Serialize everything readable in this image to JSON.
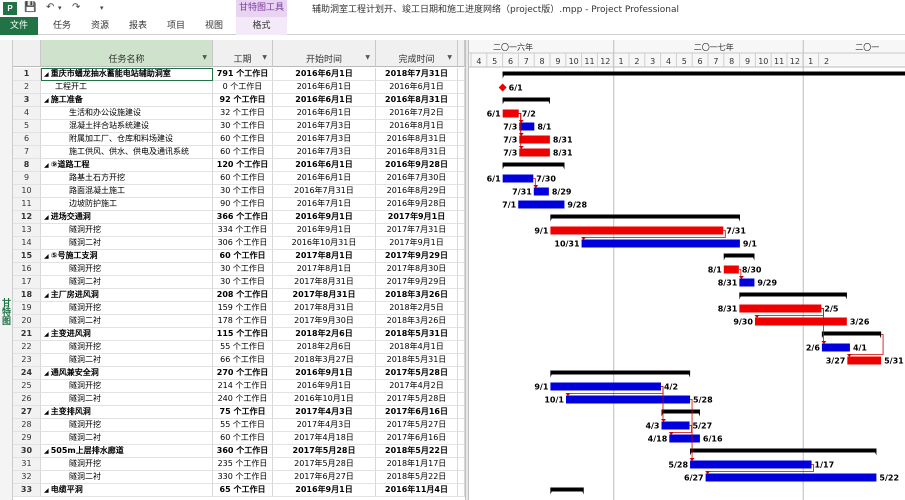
{
  "window": {
    "app_icon": "P",
    "title": "辅助洞室工程计划开、竣工日期和施工进度网络（project版）.mpp - Project Professional",
    "context_tab": "甘特图工具"
  },
  "quick_access": {
    "save_icon": "save-icon",
    "undo_icon": "undo-icon",
    "redo_icon": "redo-icon"
  },
  "ribbon": {
    "tabs": [
      {
        "label": "文件"
      },
      {
        "label": "任务"
      },
      {
        "label": "资源"
      },
      {
        "label": "报表"
      },
      {
        "label": "项目"
      },
      {
        "label": "视图"
      },
      {
        "label": "格式"
      }
    ]
  },
  "view_label": "甘特图",
  "columns": {
    "name": "任务名称",
    "duration": "工期",
    "start": "开始时间",
    "finish": "完成时间"
  },
  "timescale": {
    "years": [
      "二〇一六年",
      "二〇一七年",
      "二〇一"
    ],
    "months": [
      "4",
      "5",
      "6",
      "7",
      "8",
      "9",
      "10",
      "11",
      "12",
      "1",
      "2",
      "3",
      "4",
      "5",
      "6",
      "7",
      "8",
      "9",
      "10",
      "11",
      "12",
      "1",
      "2"
    ]
  },
  "tasks": [
    {
      "id": "1",
      "name": "重庆市蟠龙抽水蓄能电站辅助洞室",
      "dur": "791 个工作日",
      "start": "2016年6月1日",
      "finish": "2018年7月31日",
      "summary": true,
      "indent": 0
    },
    {
      "id": "2",
      "name": "工程开工",
      "dur": "0 个工作日",
      "start": "2016年6月1日",
      "finish": "2016年6月1日",
      "summary": false,
      "indent": 1
    },
    {
      "id": "3",
      "name": "施工准备",
      "dur": "92 个工作日",
      "start": "2016年6月1日",
      "finish": "2016年8月31日",
      "summary": true,
      "indent": 0
    },
    {
      "id": "4",
      "name": "生活和办公设施建设",
      "dur": "32 个工作日",
      "start": "2016年6月1日",
      "finish": "2016年7月2日",
      "summary": false,
      "indent": 2
    },
    {
      "id": "5",
      "name": "混凝土拌合站系统建设",
      "dur": "30 个工作日",
      "start": "2016年7月3日",
      "finish": "2016年8月1日",
      "summary": false,
      "indent": 2
    },
    {
      "id": "6",
      "name": "附属加工厂、仓库和料场建设",
      "dur": "60 个工作日",
      "start": "2016年7月3日",
      "finish": "2016年8月31日",
      "summary": false,
      "indent": 2
    },
    {
      "id": "7",
      "name": "施工供风、供水、供电及通讯系统",
      "dur": "60 个工作日",
      "start": "2016年7月3日",
      "finish": "2016年8月31日",
      "summary": false,
      "indent": 2
    },
    {
      "id": "8",
      "name": "⑨道路工程",
      "dur": "120 个工作日",
      "start": "2016年6月1日",
      "finish": "2016年9月28日",
      "summary": true,
      "indent": 0
    },
    {
      "id": "9",
      "name": "路基土石方开挖",
      "dur": "60 个工作日",
      "start": "2016年6月1日",
      "finish": "2016年7月30日",
      "summary": false,
      "indent": 2
    },
    {
      "id": "10",
      "name": "路面混凝土施工",
      "dur": "30 个工作日",
      "start": "2016年7月31日",
      "finish": "2016年8月29日",
      "summary": false,
      "indent": 2
    },
    {
      "id": "11",
      "name": "边坡防护施工",
      "dur": "90 个工作日",
      "start": "2016年7月1日",
      "finish": "2016年9月28日",
      "summary": false,
      "indent": 2
    },
    {
      "id": "12",
      "name": "进场交通洞",
      "dur": "366 个工作日",
      "start": "2016年9月1日",
      "finish": "2017年9月1日",
      "summary": true,
      "indent": 0
    },
    {
      "id": "13",
      "name": "隧洞开挖",
      "dur": "334 个工作日",
      "start": "2016年9月1日",
      "finish": "2017年7月31日",
      "summary": false,
      "indent": 2
    },
    {
      "id": "14",
      "name": "隧洞二衬",
      "dur": "306 个工作日",
      "start": "2016年10月31日",
      "finish": "2017年9月1日",
      "summary": false,
      "indent": 2
    },
    {
      "id": "15",
      "name": "⑤号施工支洞",
      "dur": "60 个工作日",
      "start": "2017年8月1日",
      "finish": "2017年9月29日",
      "summary": true,
      "indent": 0
    },
    {
      "id": "16",
      "name": "隧洞开挖",
      "dur": "30 个工作日",
      "start": "2017年8月1日",
      "finish": "2017年8月30日",
      "summary": false,
      "indent": 2
    },
    {
      "id": "17",
      "name": "隧洞二衬",
      "dur": "30 个工作日",
      "start": "2017年8月31日",
      "finish": "2017年9月29日",
      "summary": false,
      "indent": 2
    },
    {
      "id": "18",
      "name": "主厂房进风洞",
      "dur": "208 个工作日",
      "start": "2017年8月31日",
      "finish": "2018年3月26日",
      "summary": true,
      "indent": 0
    },
    {
      "id": "19",
      "name": "隧洞开挖",
      "dur": "159 个工作日",
      "start": "2017年8月31日",
      "finish": "2018年2月5日",
      "summary": false,
      "indent": 2
    },
    {
      "id": "20",
      "name": "隧洞二衬",
      "dur": "178 个工作日",
      "start": "2017年9月30日",
      "finish": "2018年3月26日",
      "summary": false,
      "indent": 2
    },
    {
      "id": "21",
      "name": "主变进风洞",
      "dur": "115 个工作日",
      "start": "2018年2月6日",
      "finish": "2018年5月31日",
      "summary": true,
      "indent": 0
    },
    {
      "id": "22",
      "name": "隧洞开挖",
      "dur": "55 个工作日",
      "start": "2018年2月6日",
      "finish": "2018年4月1日",
      "summary": false,
      "indent": 2
    },
    {
      "id": "23",
      "name": "隧洞二衬",
      "dur": "66 个工作日",
      "start": "2018年3月27日",
      "finish": "2018年5月31日",
      "summary": false,
      "indent": 2
    },
    {
      "id": "24",
      "name": "通风兼安全洞",
      "dur": "270 个工作日",
      "start": "2016年9月1日",
      "finish": "2017年5月28日",
      "summary": true,
      "indent": 0
    },
    {
      "id": "25",
      "name": "隧洞开挖",
      "dur": "214 个工作日",
      "start": "2016年9月1日",
      "finish": "2017年4月2日",
      "summary": false,
      "indent": 2
    },
    {
      "id": "26",
      "name": "隧洞二衬",
      "dur": "240 个工作日",
      "start": "2016年10月1日",
      "finish": "2017年5月28日",
      "summary": false,
      "indent": 2
    },
    {
      "id": "27",
      "name": "主变排风洞",
      "dur": "75 个工作日",
      "start": "2017年4月3日",
      "finish": "2017年6月16日",
      "summary": true,
      "indent": 0
    },
    {
      "id": "28",
      "name": "隧洞开挖",
      "dur": "55 个工作日",
      "start": "2017年4月3日",
      "finish": "2017年5月27日",
      "summary": false,
      "indent": 2
    },
    {
      "id": "29",
      "name": "隧洞二衬",
      "dur": "60 个工作日",
      "start": "2017年4月18日",
      "finish": "2017年6月16日",
      "summary": false,
      "indent": 2
    },
    {
      "id": "30",
      "name": "505m上层排水廊道",
      "dur": "360 个工作日",
      "start": "2017年5月28日",
      "finish": "2018年5月22日",
      "summary": true,
      "indent": 0
    },
    {
      "id": "31",
      "name": "隧洞开挖",
      "dur": "235 个工作日",
      "start": "2017年5月28日",
      "finish": "2018年1月17日",
      "summary": false,
      "indent": 2
    },
    {
      "id": "32",
      "name": "隧洞二衬",
      "dur": "330 个工作日",
      "start": "2017年6月27日",
      "finish": "2018年5月22日",
      "summary": false,
      "indent": 2
    },
    {
      "id": "33",
      "name": "电缆平洞",
      "dur": "65 个工作日",
      "start": "2016年9月1日",
      "finish": "2016年11月4日",
      "summary": true,
      "indent": 0
    }
  ],
  "gantt": {
    "colors": {
      "summary": "#000000",
      "critical": "#ee0000",
      "normal": "#0000dd",
      "link": "#cc0000",
      "milestone": "#ee0000"
    },
    "bars": [
      {
        "row": 0,
        "kind": "summary",
        "start": "2016-06-01",
        "end": "2018-07-31",
        "ll": "",
        "rl": ""
      },
      {
        "row": 1,
        "kind": "milestone",
        "start": "2016-06-01",
        "end": "2016-06-01",
        "ll": "",
        "rl": "6/1"
      },
      {
        "row": 2,
        "kind": "summary",
        "start": "2016-06-01",
        "end": "2016-08-31",
        "ll": "",
        "rl": ""
      },
      {
        "row": 3,
        "kind": "critical",
        "start": "2016-06-01",
        "end": "2016-07-02",
        "ll": "6/1",
        "rl": "7/2"
      },
      {
        "row": 4,
        "kind": "normal",
        "start": "2016-07-03",
        "end": "2016-08-01",
        "ll": "7/3",
        "rl": "8/1"
      },
      {
        "row": 5,
        "kind": "critical",
        "start": "2016-07-03",
        "end": "2016-08-31",
        "ll": "7/3",
        "rl": "8/31"
      },
      {
        "row": 6,
        "kind": "critical",
        "start": "2016-07-03",
        "end": "2016-08-31",
        "ll": "7/3",
        "rl": "8/31"
      },
      {
        "row": 7,
        "kind": "summary",
        "start": "2016-06-01",
        "end": "2016-09-28",
        "ll": "",
        "rl": ""
      },
      {
        "row": 8,
        "kind": "normal",
        "start": "2016-06-01",
        "end": "2016-07-30",
        "ll": "6/1",
        "rl": "7/30"
      },
      {
        "row": 9,
        "kind": "normal",
        "start": "2016-07-31",
        "end": "2016-08-29",
        "ll": "7/31",
        "rl": "8/29"
      },
      {
        "row": 10,
        "kind": "normal",
        "start": "2016-07-01",
        "end": "2016-09-28",
        "ll": "7/1",
        "rl": "9/28"
      },
      {
        "row": 11,
        "kind": "summary",
        "start": "2016-09-01",
        "end": "2017-09-01",
        "ll": "",
        "rl": ""
      },
      {
        "row": 12,
        "kind": "critical",
        "start": "2016-09-01",
        "end": "2017-07-31",
        "ll": "9/1",
        "rl": "7/31"
      },
      {
        "row": 13,
        "kind": "normal",
        "start": "2016-10-31",
        "end": "2017-09-01",
        "ll": "10/31",
        "rl": "9/1"
      },
      {
        "row": 14,
        "kind": "summary",
        "start": "2017-08-01",
        "end": "2017-09-29",
        "ll": "",
        "rl": ""
      },
      {
        "row": 15,
        "kind": "critical",
        "start": "2017-08-01",
        "end": "2017-08-30",
        "ll": "8/1",
        "rl": "8/30"
      },
      {
        "row": 16,
        "kind": "normal",
        "start": "2017-08-31",
        "end": "2017-09-29",
        "ll": "8/31",
        "rl": "9/29"
      },
      {
        "row": 17,
        "kind": "summary",
        "start": "2017-08-31",
        "end": "2018-03-26",
        "ll": "",
        "rl": ""
      },
      {
        "row": 18,
        "kind": "critical",
        "start": "2017-08-31",
        "end": "2018-02-05",
        "ll": "8/31",
        "rl": "2/5"
      },
      {
        "row": 19,
        "kind": "critical",
        "start": "2017-09-30",
        "end": "2018-03-26",
        "ll": "9/30",
        "rl": "3/26"
      },
      {
        "row": 20,
        "kind": "summary",
        "start": "2018-02-06",
        "end": "2018-05-31",
        "ll": "",
        "rl": ""
      },
      {
        "row": 21,
        "kind": "normal",
        "start": "2018-02-06",
        "end": "2018-04-01",
        "ll": "2/6",
        "rl": "4/1"
      },
      {
        "row": 22,
        "kind": "critical",
        "start": "2018-03-27",
        "end": "2018-05-31",
        "ll": "3/27",
        "rl": "5/31"
      },
      {
        "row": 23,
        "kind": "summary",
        "start": "2016-09-01",
        "end": "2017-05-28",
        "ll": "",
        "rl": ""
      },
      {
        "row": 24,
        "kind": "normal",
        "start": "2016-09-01",
        "end": "2017-04-02",
        "ll": "9/1",
        "rl": "4/2"
      },
      {
        "row": 25,
        "kind": "normal",
        "start": "2016-10-01",
        "end": "2017-05-28",
        "ll": "10/1",
        "rl": "5/28"
      },
      {
        "row": 26,
        "kind": "summary",
        "start": "2017-04-03",
        "end": "2017-06-16",
        "ll": "",
        "rl": ""
      },
      {
        "row": 27,
        "kind": "normal",
        "start": "2017-04-03",
        "end": "2017-05-27",
        "ll": "4/3",
        "rl": "5/27"
      },
      {
        "row": 28,
        "kind": "normal",
        "start": "2017-04-18",
        "end": "2017-06-16",
        "ll": "4/18",
        "rl": "6/16"
      },
      {
        "row": 29,
        "kind": "summary",
        "start": "2017-05-28",
        "end": "2018-05-22",
        "ll": "",
        "rl": ""
      },
      {
        "row": 30,
        "kind": "normal",
        "start": "2017-05-28",
        "end": "2018-01-17",
        "ll": "5/28",
        "rl": "1/17"
      },
      {
        "row": 31,
        "kind": "normal",
        "start": "2017-06-27",
        "end": "2018-05-22",
        "ll": "6/27",
        "rl": "5/22"
      },
      {
        "row": 32,
        "kind": "summary",
        "start": "2016-09-01",
        "end": "2016-11-04",
        "ll": "",
        "rl": ""
      }
    ],
    "links": [
      {
        "from": 4,
        "to": 5
      },
      {
        "from": 4,
        "to": 6
      },
      {
        "from": 4,
        "to": 7
      },
      {
        "from": 9,
        "to": 10
      },
      {
        "from": 13,
        "to": 14
      },
      {
        "from": 16,
        "to": 17
      },
      {
        "from": 19,
        "to": 20
      },
      {
        "from": 19,
        "to": 22
      },
      {
        "from": 21,
        "to": 23
      },
      {
        "from": 25,
        "to": 26
      },
      {
        "from": 25,
        "to": 28
      },
      {
        "from": 28,
        "to": 29
      },
      {
        "from": 26,
        "to": 31
      },
      {
        "from": 31,
        "to": 32
      }
    ]
  }
}
